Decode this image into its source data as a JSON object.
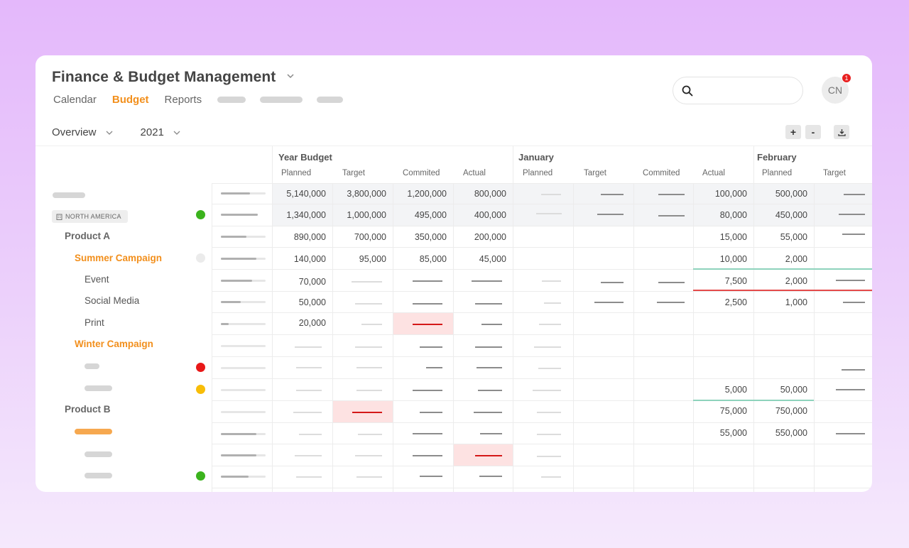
{
  "app": {
    "title": "Finance & Budget Management"
  },
  "nav": {
    "tabs": [
      "Calendar",
      "Budget",
      "Reports"
    ],
    "active": "Budget"
  },
  "search": {
    "placeholder": ""
  },
  "user": {
    "initials": "CN",
    "notifications": "1"
  },
  "filters": {
    "view": "Overview",
    "year": "2021"
  },
  "toolbar": {
    "zoom_in": "+",
    "zoom_out": "-"
  },
  "grid": {
    "months": [
      "Year Budget",
      "January",
      "February"
    ],
    "subheaders": [
      "Planned",
      "Target",
      "Commited",
      "Actual",
      "Planned",
      "Target",
      "Commited",
      "Actual",
      "Planned",
      "Target"
    ],
    "region_label": "NORTH AMERICA",
    "tree": {
      "product_a": "Product A",
      "summer_campaign": "Summer Campaign",
      "event": "Event",
      "social_media": "Social Media",
      "print": "Print",
      "winter_campaign": "Winter Campaign",
      "product_b": "Product B"
    },
    "rows": [
      {
        "yb": [
          "5,140,000",
          "3,800,000",
          "1,200,000",
          "800,000"
        ],
        "jan_actual": "100,000",
        "feb": [
          "500,000"
        ]
      },
      {
        "yb": [
          "1,340,000",
          "1,000,000",
          "495,000",
          "400,000"
        ],
        "jan_actual": "80,000",
        "feb": [
          "450,000"
        ]
      },
      {
        "yb": [
          "890,000",
          "700,000",
          "350,000",
          "200,000"
        ],
        "jan_actual": "15,000",
        "feb": [
          "55,000"
        ]
      },
      {
        "yb": [
          "140,000",
          "95,000",
          "85,000",
          "45,000"
        ],
        "jan_actual": "10,000",
        "feb": [
          "2,000"
        ]
      },
      {
        "yb": [
          "70,000"
        ],
        "jan_actual": "7,500",
        "feb": [
          "2,000"
        ]
      },
      {
        "yb": [
          "50,000"
        ],
        "jan_actual": "2,500",
        "feb": [
          "1,000"
        ]
      },
      {
        "yb": [
          "20,000"
        ]
      },
      {},
      {},
      {
        "jan_actual": "5,000",
        "feb": [
          "50,000"
        ]
      },
      {
        "jan_actual": "75,000",
        "feb": [
          "750,000"
        ]
      },
      {
        "jan_actual": "55,000",
        "feb": [
          "550,000"
        ]
      }
    ]
  },
  "colors": {
    "accent": "#f28f1c",
    "status_green": "#3bb31d",
    "status_red": "#e81818",
    "status_yellow": "#f8bd07"
  }
}
